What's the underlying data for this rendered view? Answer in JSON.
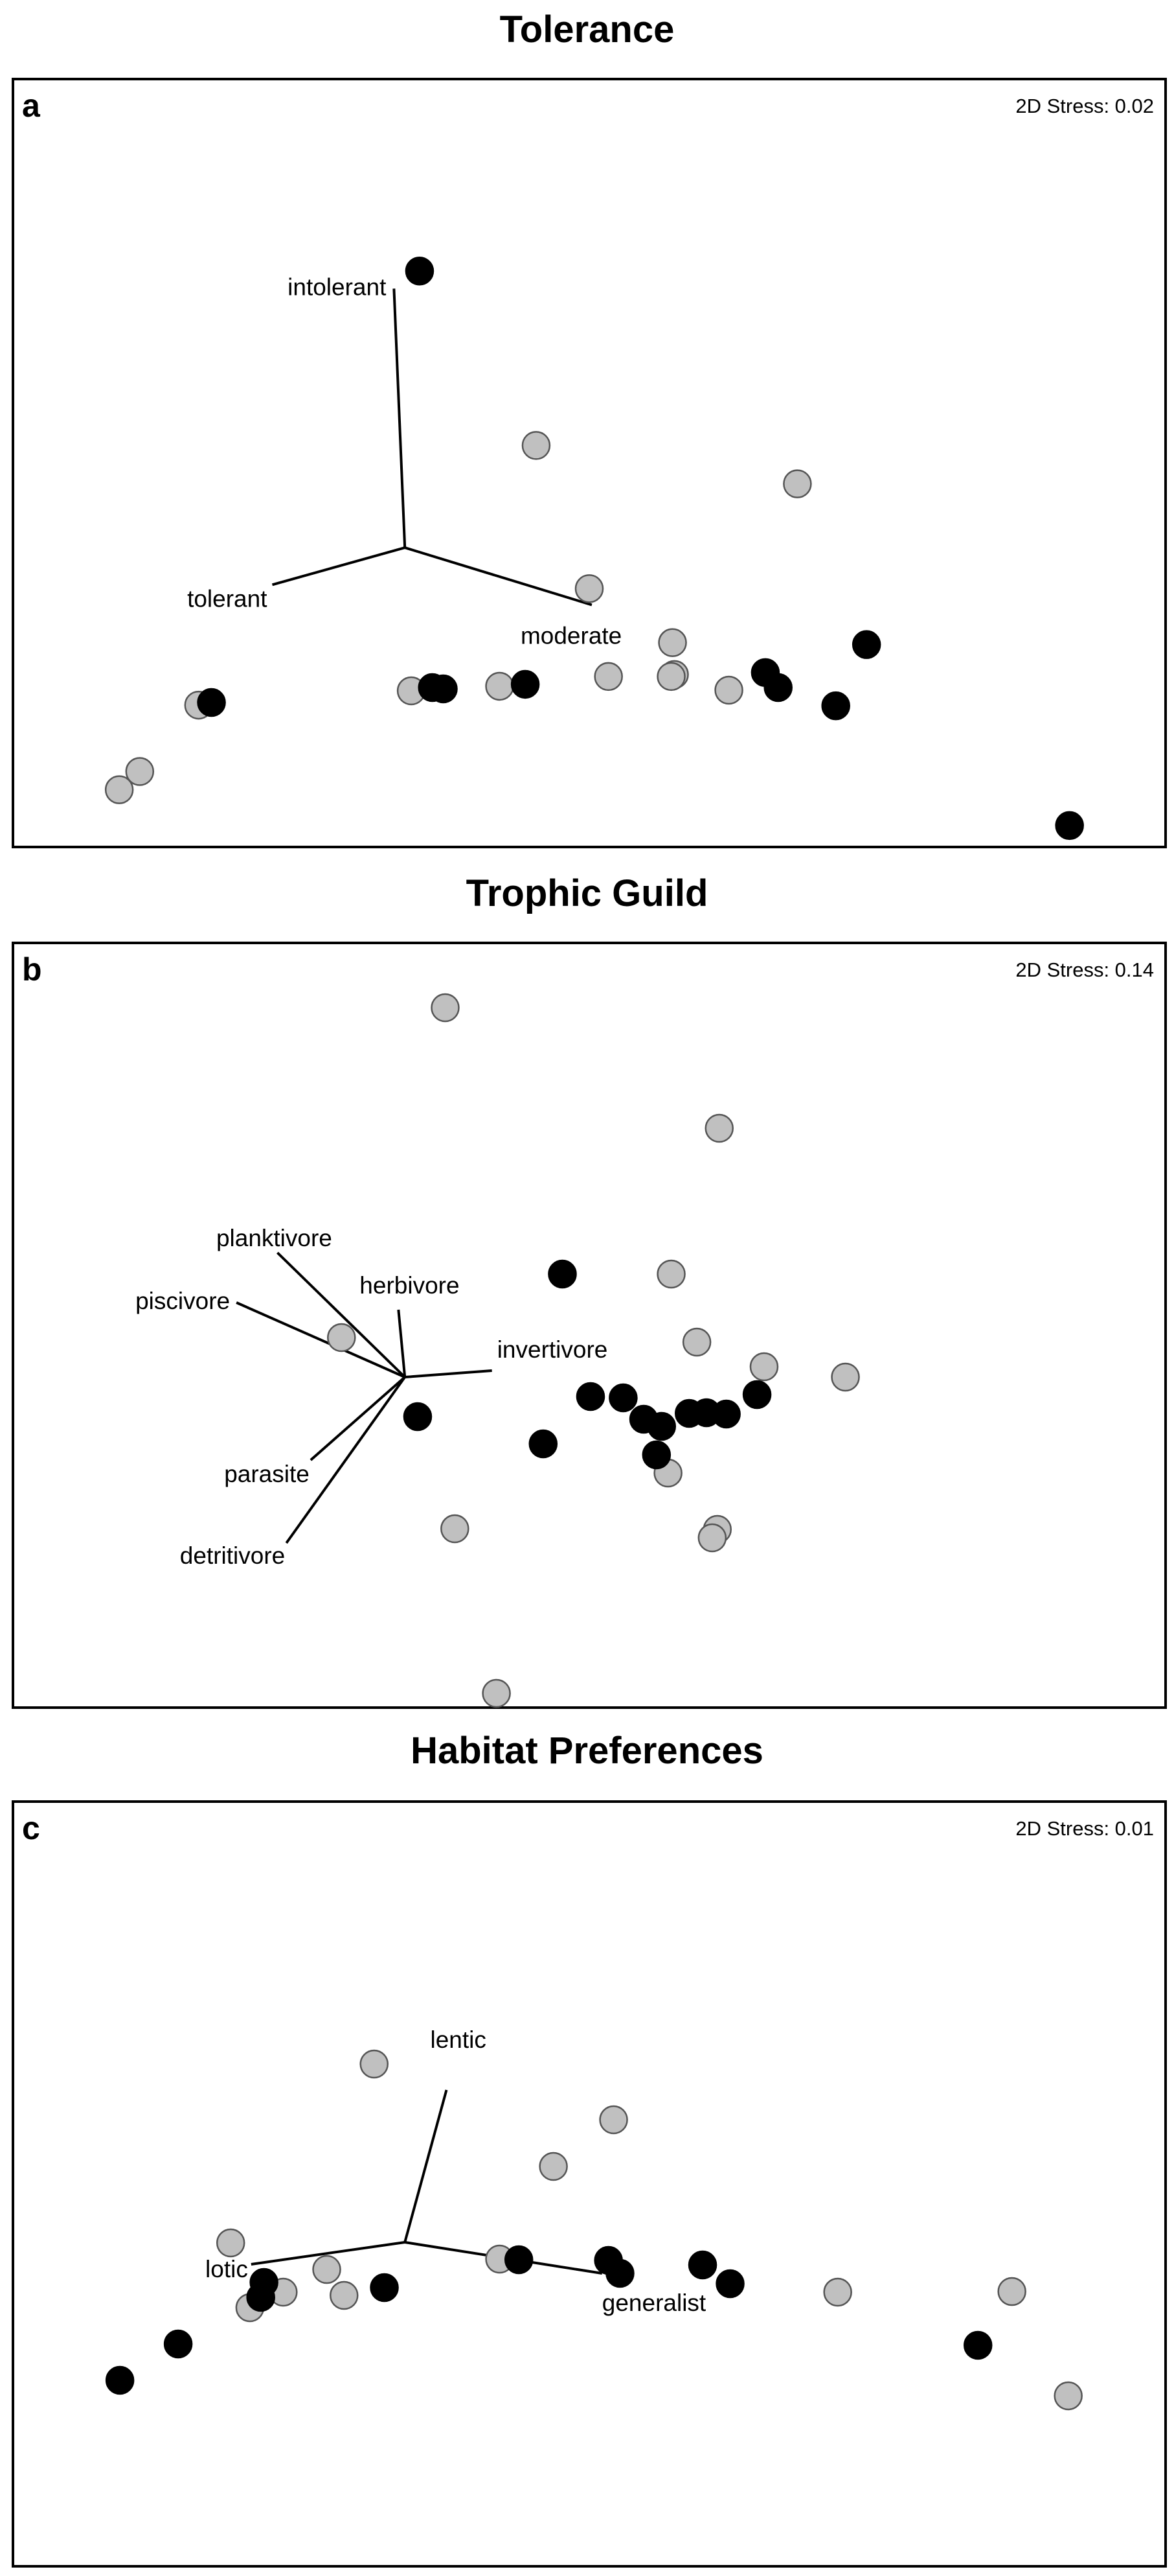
{
  "colors": {
    "black_point": "#000000",
    "grey_point": "#c0c0c0",
    "point_edge": "#555555",
    "frame": "#000000",
    "vector": "#000000"
  },
  "chart_data": [
    {
      "type": "scatter",
      "title": "Tolerance",
      "panel_letter": "a",
      "stress_label": "2D Stress: 0.02",
      "xlim": [
        0,
        1800
      ],
      "ylim": [
        0,
        1180
      ],
      "grid": false,
      "series": [
        {
          "color": "black",
          "points": [
            [
              635,
              295
            ],
            [
              800,
              930
            ],
            [
              655,
              935
            ],
            [
              672,
              937
            ],
            [
              310,
              958
            ],
            [
              1175,
              912
            ],
            [
              1195,
              935
            ],
            [
              1333,
              869
            ],
            [
              1285,
              963
            ],
            [
              1650,
              1147
            ]
          ]
        },
        {
          "color": "grey",
          "points": [
            [
              817,
              563
            ],
            [
              1225,
              622
            ],
            [
              900,
              783
            ],
            [
              1030,
              866
            ],
            [
              1118,
              939
            ],
            [
              1033,
              915
            ],
            [
              1028,
              918
            ],
            [
              930,
              918
            ],
            [
              760,
              933
            ],
            [
              622,
              940
            ],
            [
              290,
              962
            ],
            [
              198,
              1064
            ],
            [
              166,
              1092
            ]
          ]
        }
      ],
      "vectors": [
        {
          "label": "intolerant",
          "end": [
            595,
            322
          ]
        },
        {
          "label": "tolerant",
          "end": [
            405,
            777
          ]
        },
        {
          "label": "moderate",
          "end": [
            904,
            808
          ]
        }
      ],
      "vector_origin": [
        612,
        720
      ]
    },
    {
      "type": "scatter",
      "title": "Trophic Guild",
      "panel_letter": "b",
      "stress_label": "2D Stress: 0.14",
      "xlim": [
        0,
        1800
      ],
      "ylim": [
        0,
        1180
      ],
      "grid": false,
      "series": [
        {
          "color": "black",
          "points": [
            [
              858,
              511
            ],
            [
              632,
              731
            ],
            [
              902,
              700
            ],
            [
              953,
              702
            ],
            [
              985,
              735
            ],
            [
              1013,
              746
            ],
            [
              1056,
              726
            ],
            [
              1083,
              725
            ],
            [
              1114,
              727
            ],
            [
              1162,
              697
            ],
            [
              1005,
              790
            ],
            [
              828,
              773
            ]
          ]
        },
        {
          "color": "grey",
          "points": [
            [
              675,
              100
            ],
            [
              1103,
              286
            ],
            [
              1028,
              511
            ],
            [
              1068,
              616
            ],
            [
              1173,
              654
            ],
            [
              1300,
              670
            ],
            [
              513,
              609
            ],
            [
              1023,
              818
            ],
            [
              690,
              904
            ],
            [
              1100,
              905
            ],
            [
              1092,
              918
            ],
            [
              755,
              1158
            ]
          ]
        }
      ],
      "vectors": [
        {
          "label": "planktivore",
          "end": [
            413,
            478
          ]
        },
        {
          "label": "piscivore",
          "end": [
            349,
            555
          ]
        },
        {
          "label": "herbivore",
          "end": [
            602,
            566
          ]
        },
        {
          "label": "invertivore",
          "end": [
            748,
            660
          ]
        },
        {
          "label": "parasite",
          "end": [
            465,
            798
          ]
        },
        {
          "label": "detritivore",
          "end": [
            427,
            926
          ]
        }
      ],
      "vector_origin": [
        612,
        670
      ]
    },
    {
      "type": "scatter",
      "title": "Habitat Preferences",
      "panel_letter": "c",
      "stress_label": "2D Stress: 0.01",
      "xlim": [
        0,
        1800
      ],
      "ylim": [
        0,
        1180
      ],
      "grid": false,
      "series": [
        {
          "color": "black",
          "points": [
            [
              392,
              742
            ],
            [
              387,
              765
            ],
            [
              580,
              750
            ],
            [
              790,
              707
            ],
            [
              930,
              708
            ],
            [
              948,
              728
            ],
            [
              1077,
              715
            ],
            [
              1120,
              744
            ],
            [
              258,
              837
            ],
            [
              167,
              893
            ],
            [
              1507,
              839
            ]
          ]
        },
        {
          "color": "grey",
          "points": [
            [
              564,
              405
            ],
            [
              938,
              491
            ],
            [
              844,
              563
            ],
            [
              340,
              681
            ],
            [
              490,
              722
            ],
            [
              760,
              706
            ],
            [
              422,
              757
            ],
            [
              517,
              762
            ],
            [
              370,
              781
            ],
            [
              1288,
              757
            ],
            [
              1560,
              756
            ],
            [
              1648,
              917
            ]
          ]
        }
      ],
      "vectors": [
        {
          "label": "lentic",
          "end": [
            677,
            445
          ]
        },
        {
          "label": "lotic",
          "end": [
            372,
            714
          ]
        },
        {
          "label": "generalist",
          "end": [
            920,
            728
          ]
        }
      ],
      "vector_origin": [
        612,
        680
      ]
    }
  ]
}
